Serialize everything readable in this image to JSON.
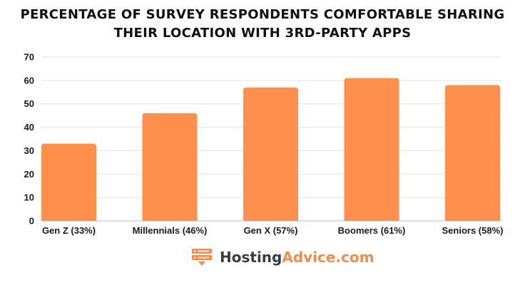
{
  "chart_data": {
    "type": "bar",
    "title_line1": "PERCENTAGE OF SURVEY RESPONDENTS COMFORTABLE SHARING",
    "title_line2": "THEIR LOCATION WITH 3RD-PARTY APPS",
    "categories": [
      "Gen Z (33%)",
      "Millennials (46%)",
      "Gen X (57%)",
      "Boomers (61%)",
      "Seniors (58%)"
    ],
    "values": [
      33,
      46,
      57,
      61,
      58
    ],
    "ylim": [
      0,
      70
    ],
    "yticks": [
      0,
      10,
      20,
      30,
      40,
      50,
      60,
      70
    ],
    "xlabel": "",
    "ylabel": "",
    "grid": true,
    "bar_color": "#ff8f4d",
    "grid_color": "#e3e3e3"
  },
  "brand": {
    "part1": "Hosting",
    "part2": "Advice.com",
    "logo_icon": "server-icon",
    "color_dark": "#3b3b3b",
    "color_accent": "#f58b4c"
  }
}
